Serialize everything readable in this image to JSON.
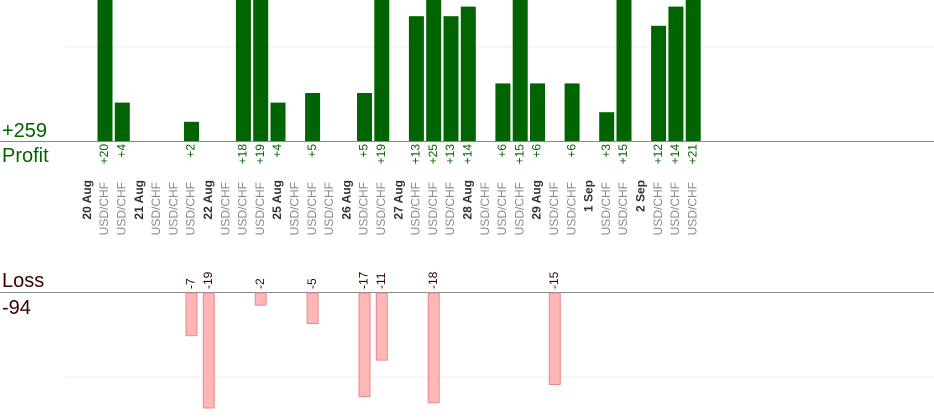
{
  "profit_total": "+259",
  "profit_label": "Profit",
  "loss_label": "Loss",
  "loss_total": "-94",
  "colors": {
    "profit_bar": "#006400",
    "loss_bar": "#ffb6b6",
    "loss_bar_edge": "#e88a8a",
    "profit_text": "#006400",
    "loss_text": "#3a0000",
    "axis": "#888888",
    "grid": "#eeeeee"
  },
  "chart_data": {
    "type": "bar",
    "title": "",
    "xlabel": "",
    "ylabel": "",
    "grid": true,
    "dates": [
      {
        "label": "20 Aug",
        "col": 0
      },
      {
        "label": "21 Aug",
        "col": 3
      },
      {
        "label": "22 Aug",
        "col": 7
      },
      {
        "label": "25 Aug",
        "col": 11
      },
      {
        "label": "26 Aug",
        "col": 15
      },
      {
        "label": "27 Aug",
        "col": 18
      },
      {
        "label": "28 Aug",
        "col": 22
      },
      {
        "label": "29 Aug",
        "col": 26
      },
      {
        "label": "1 Sep",
        "col": 29
      },
      {
        "label": "2 Sep",
        "col": 32
      }
    ],
    "pair_columns": [
      1,
      2,
      4,
      5,
      6,
      8,
      9,
      10,
      12,
      13,
      14,
      16,
      17,
      19,
      20,
      21,
      23,
      24,
      25,
      27,
      28,
      30,
      31,
      33,
      34,
      35
    ],
    "pair_label": "USD/CHF",
    "profit": [
      {
        "col": 1,
        "value": 20,
        "label": "+20"
      },
      {
        "col": 2,
        "value": 4,
        "label": "+4"
      },
      {
        "col": 6,
        "value": 2,
        "label": "+2"
      },
      {
        "col": 9,
        "value": 18,
        "label": "+18"
      },
      {
        "col": 10,
        "value": 19,
        "label": "+19"
      },
      {
        "col": 11,
        "value": 4,
        "label": "+4"
      },
      {
        "col": 13,
        "value": 5,
        "label": "+5"
      },
      {
        "col": 16,
        "value": 5,
        "label": "+5"
      },
      {
        "col": 17,
        "value": 19,
        "label": "+19"
      },
      {
        "col": 19,
        "value": 13,
        "label": "+13"
      },
      {
        "col": 20,
        "value": 25,
        "label": "+25"
      },
      {
        "col": 21,
        "value": 13,
        "label": "+13"
      },
      {
        "col": 22,
        "value": 14,
        "label": "+14"
      },
      {
        "col": 24,
        "value": 6,
        "label": "+6"
      },
      {
        "col": 25,
        "value": 15,
        "label": "+15"
      },
      {
        "col": 26,
        "value": 6,
        "label": "+6"
      },
      {
        "col": 28,
        "value": 6,
        "label": "+6"
      },
      {
        "col": 30,
        "value": 3,
        "label": "+3"
      },
      {
        "col": 31,
        "value": 15,
        "label": "+15"
      },
      {
        "col": 33,
        "value": 12,
        "label": "+12"
      },
      {
        "col": 34,
        "value": 14,
        "label": "+14"
      },
      {
        "col": 35,
        "value": 21,
        "label": "+21"
      }
    ],
    "loss": [
      {
        "col": 6,
        "value": -7,
        "label": "-7"
      },
      {
        "col": 7,
        "value": -19,
        "label": "-19"
      },
      {
        "col": 10,
        "value": -2,
        "label": "-2"
      },
      {
        "col": 13,
        "value": -5,
        "label": "-5"
      },
      {
        "col": 16,
        "value": -17,
        "label": "-17"
      },
      {
        "col": 17,
        "value": -11,
        "label": "-11"
      },
      {
        "col": 20,
        "value": -18,
        "label": "-18"
      },
      {
        "col": 27,
        "value": -15,
        "label": "-15"
      }
    ]
  }
}
